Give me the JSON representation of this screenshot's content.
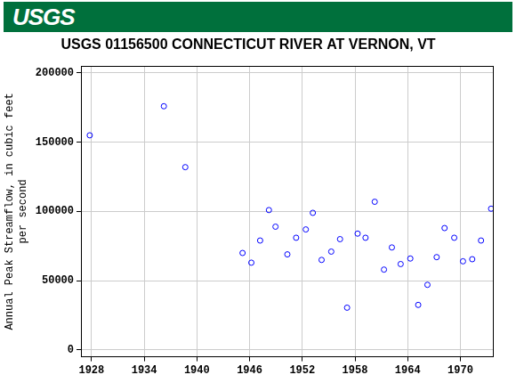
{
  "header": {
    "logo": "USGS"
  },
  "chart_data": {
    "type": "scatter",
    "title": "USGS 01156500 CONNECTICUT RIVER AT VERNON, VT",
    "y_label": [
      "Annual Peak Streamflow, in cubic feet",
      "per second"
    ],
    "x": [
      1927.8,
      1936.24,
      1938.68,
      1945.2,
      1946.2,
      1947.2,
      1948.2,
      1948.95,
      1950.3,
      1951.3,
      1952.4,
      1953.2,
      1954.2,
      1955.3,
      1956.3,
      1957.1,
      1958.3,
      1959.2,
      1960.25,
      1961.3,
      1962.2,
      1963.2,
      1964.3,
      1965.2,
      1966.25,
      1967.3,
      1968.2,
      1969.3,
      1970.3,
      1971.35,
      1972.35,
      1973.5
    ],
    "values": [
      155000,
      176000,
      132000,
      70000,
      63000,
      79000,
      101000,
      89000,
      69000,
      81000,
      87000,
      99000,
      65000,
      71000,
      80000,
      30500,
      84000,
      81000,
      107000,
      58000,
      74000,
      62000,
      66000,
      32500,
      47000,
      67000,
      88000,
      81000,
      64000,
      65500,
      79000,
      102000
    ],
    "color": "#0000ff",
    "marker": "circle",
    "xlim": [
      1926.8,
      1973.7
    ],
    "xticks": [
      1928,
      1934,
      1940,
      1946,
      1952,
      1958,
      1964,
      1970
    ],
    "ylim": [
      -5000,
      205000
    ],
    "yticks": [
      0,
      50000,
      100000,
      150000,
      200000
    ],
    "grid": true
  }
}
